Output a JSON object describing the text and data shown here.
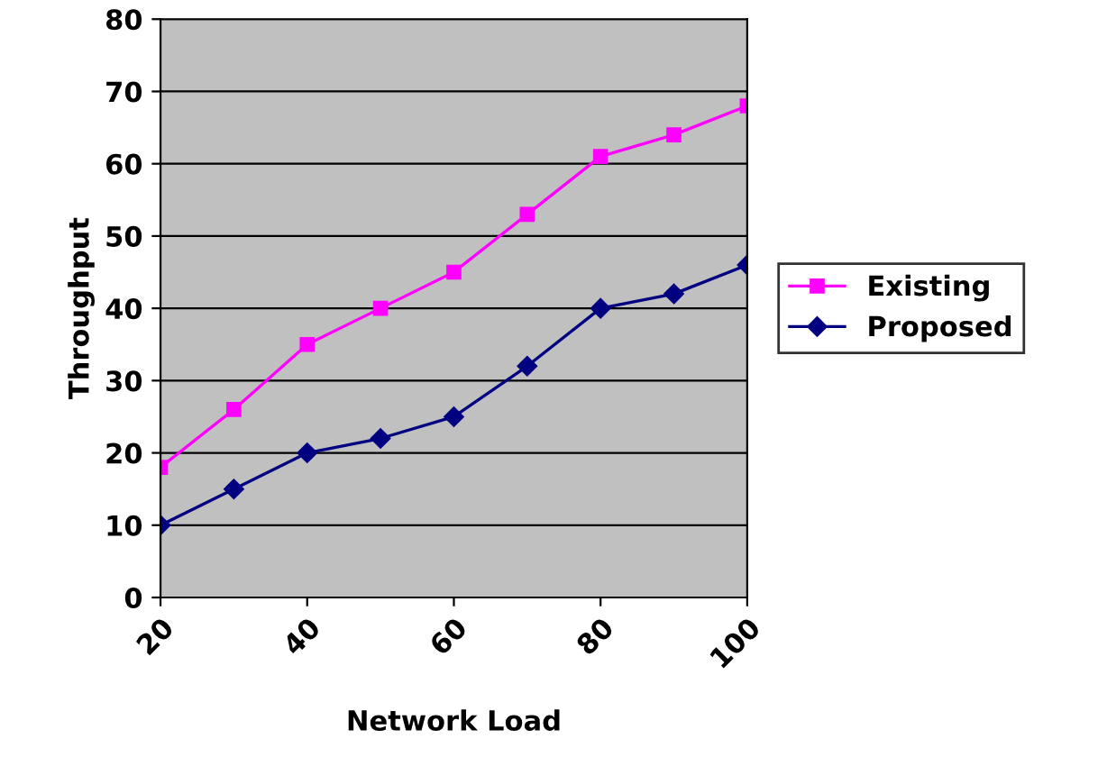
{
  "chart_data": {
    "type": "line",
    "xlabel": "Network Load",
    "ylabel": "Throughput",
    "x": [
      20,
      30,
      40,
      50,
      60,
      70,
      80,
      90,
      100
    ],
    "series": [
      {
        "name": "Existing",
        "color": "#ff00ff",
        "marker": "square",
        "values": [
          18,
          26,
          35,
          40,
          45,
          53,
          61,
          64,
          68
        ]
      },
      {
        "name": "Proposed",
        "color": "#000080",
        "marker": "diamond",
        "values": [
          10,
          15,
          20,
          22,
          25,
          32,
          40,
          42,
          46
        ]
      }
    ],
    "xlim": [
      20,
      100
    ],
    "xticks": [
      20,
      40,
      60,
      80,
      100
    ],
    "ylim": [
      0,
      80
    ],
    "yticks": [
      0,
      10,
      20,
      30,
      40,
      50,
      60,
      70,
      80
    ],
    "grid": "y",
    "legend": "right",
    "line_style": "solid"
  }
}
